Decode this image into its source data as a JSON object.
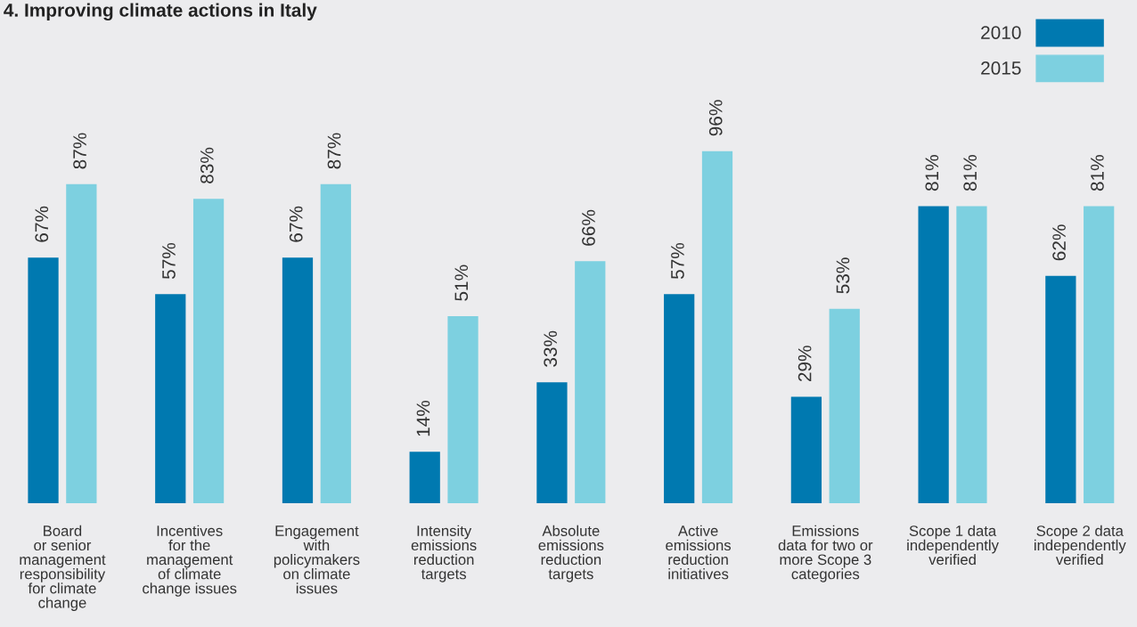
{
  "chart_data": {
    "type": "bar",
    "title": "4. Improving climate actions in Italy",
    "legend": "top right",
    "categories": [
      "Board\nor senior\nmanagement\nresponsibility\nfor climate\nchange",
      "Incentives\nfor the\nmanagement\nof climate\nchange issues",
      "Engagement\nwith\npolicymakers\non climate\nissues",
      "Intensity\nemissions\nreduction\ntargets",
      "Absolute\nemissions\nreduction\ntargets",
      "Active\nemissions\nreduction\ninitiatives",
      "Emissions\ndata for two or\nmore Scope 3\ncategories",
      "Scope 1 data\nindependently\nverified",
      "Scope 2 data\nindependently\nverified"
    ],
    "series": [
      {
        "name": "2010",
        "color": "#0079b0",
        "values": [
          67,
          57,
          67,
          14,
          33,
          57,
          29,
          81,
          62
        ],
        "value_labels": [
          "67%",
          "57%",
          "67%",
          "14%",
          "33%",
          "57%",
          "29%",
          "81%",
          "62%"
        ]
      },
      {
        "name": "2015",
        "color": "#7dd0e0",
        "values": [
          87,
          83,
          87,
          51,
          66,
          96,
          53,
          81,
          81
        ],
        "value_labels": [
          "87%",
          "83%",
          "87%",
          "51%",
          "66%",
          "96%",
          "53%",
          "81%",
          "81%"
        ]
      }
    ]
  }
}
